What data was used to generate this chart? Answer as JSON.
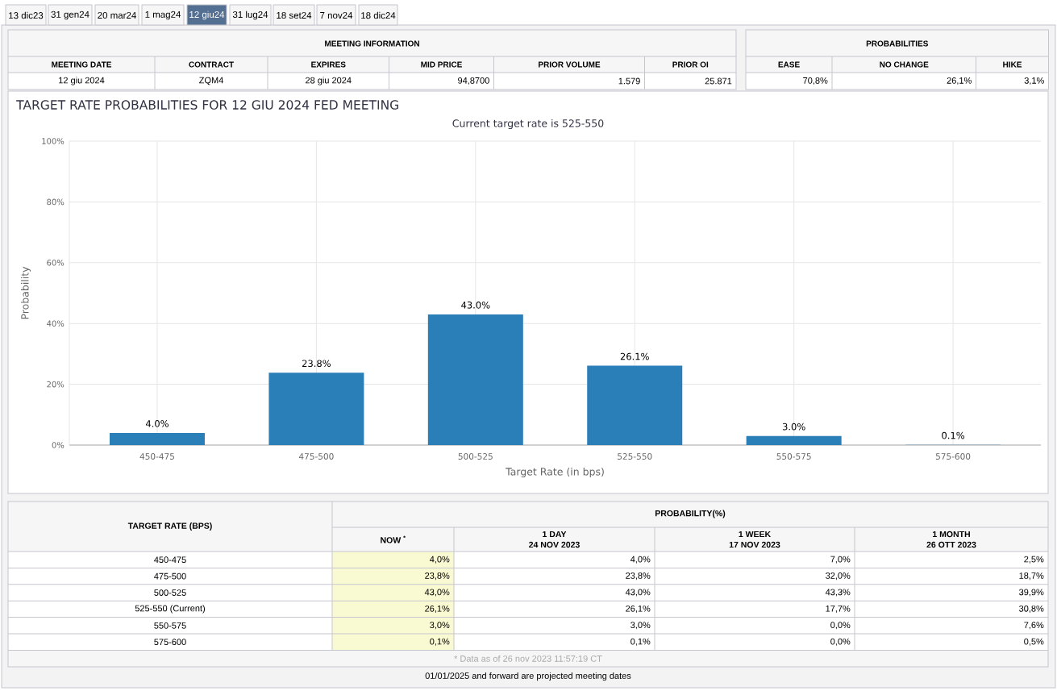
{
  "chart_data": {
    "type": "bar",
    "title": "TARGET RATE PROBABILITIES FOR 12 GIU 2024 FED MEETING",
    "subtitle": "Current target rate is 525-550",
    "xlabel": "Target Rate (in bps)",
    "ylabel": "Probability",
    "categories": [
      "450-475",
      "475-500",
      "500-525",
      "525-550",
      "550-575",
      "575-600"
    ],
    "values": [
      4.0,
      23.8,
      43.0,
      26.1,
      3.0,
      0.1
    ],
    "value_labels": [
      "4.0%",
      "23.8%",
      "43.0%",
      "26.1%",
      "3.0%",
      "0.1%"
    ],
    "color": "#2a7fb9",
    "ylim": [
      0,
      100
    ],
    "yticks": [
      {
        "value": 0,
        "label": "0%"
      },
      {
        "value": 20,
        "label": "20%"
      },
      {
        "value": 40,
        "label": "40%"
      },
      {
        "value": 60,
        "label": "60%"
      },
      {
        "value": 80,
        "label": "80%"
      },
      {
        "value": 100,
        "label": "100%"
      }
    ],
    "grid": true,
    "annotations": [
      "13 dic23",
      "31 gen24",
      "20 mar24",
      "1 mag24",
      "12 giu24",
      "31 lug24",
      "18 set24",
      "7 nov24",
      "18 dic24",
      "MEETING INFORMATION",
      "MEETING DATE",
      "CONTRACT",
      "EXPIRES",
      "MID PRICE",
      "PRIOR VOLUME",
      "PRIOR OI",
      "12 giu 2024",
      "ZQM4",
      "28 giu 2024",
      "94,8700",
      "1.579",
      "25.871",
      "PROBABILITIES",
      "EASE",
      "NO CHANGE",
      "HIKE",
      "70,8%",
      "26,1%",
      "3,1%",
      "TARGET RATE (BPS)",
      "PROBABILITY(%)",
      "NOW $^{*}$",
      "1 DAY",
      "24 NOV 2023",
      "1 WEEK",
      "17 NOV 2023",
      "1 MONTH",
      "26 OTT 2023",
      "450-475",
      "4,0%",
      "4,0%",
      "7,0%",
      "2,5%",
      "475-500",
      "23,8%",
      "23,8%",
      "32,0%",
      "18,7%",
      "500-525",
      "43,0%",
      "43,0%",
      "43,3%",
      "39,9%",
      "525-550 (Current)",
      "26,1%",
      "26,1%",
      "17,7%",
      "30,8%",
      "550-575",
      "3,0%",
      "3,0%",
      "0,0%",
      "7,6%",
      "575-600",
      "0,1%",
      "0,1%",
      "0,0%",
      "0,5%",
      "* Data as of 26 nov 2023 11:57:19 CT",
      "01/01/2025 and forward are projected meeting dates"
    ]
  }
}
